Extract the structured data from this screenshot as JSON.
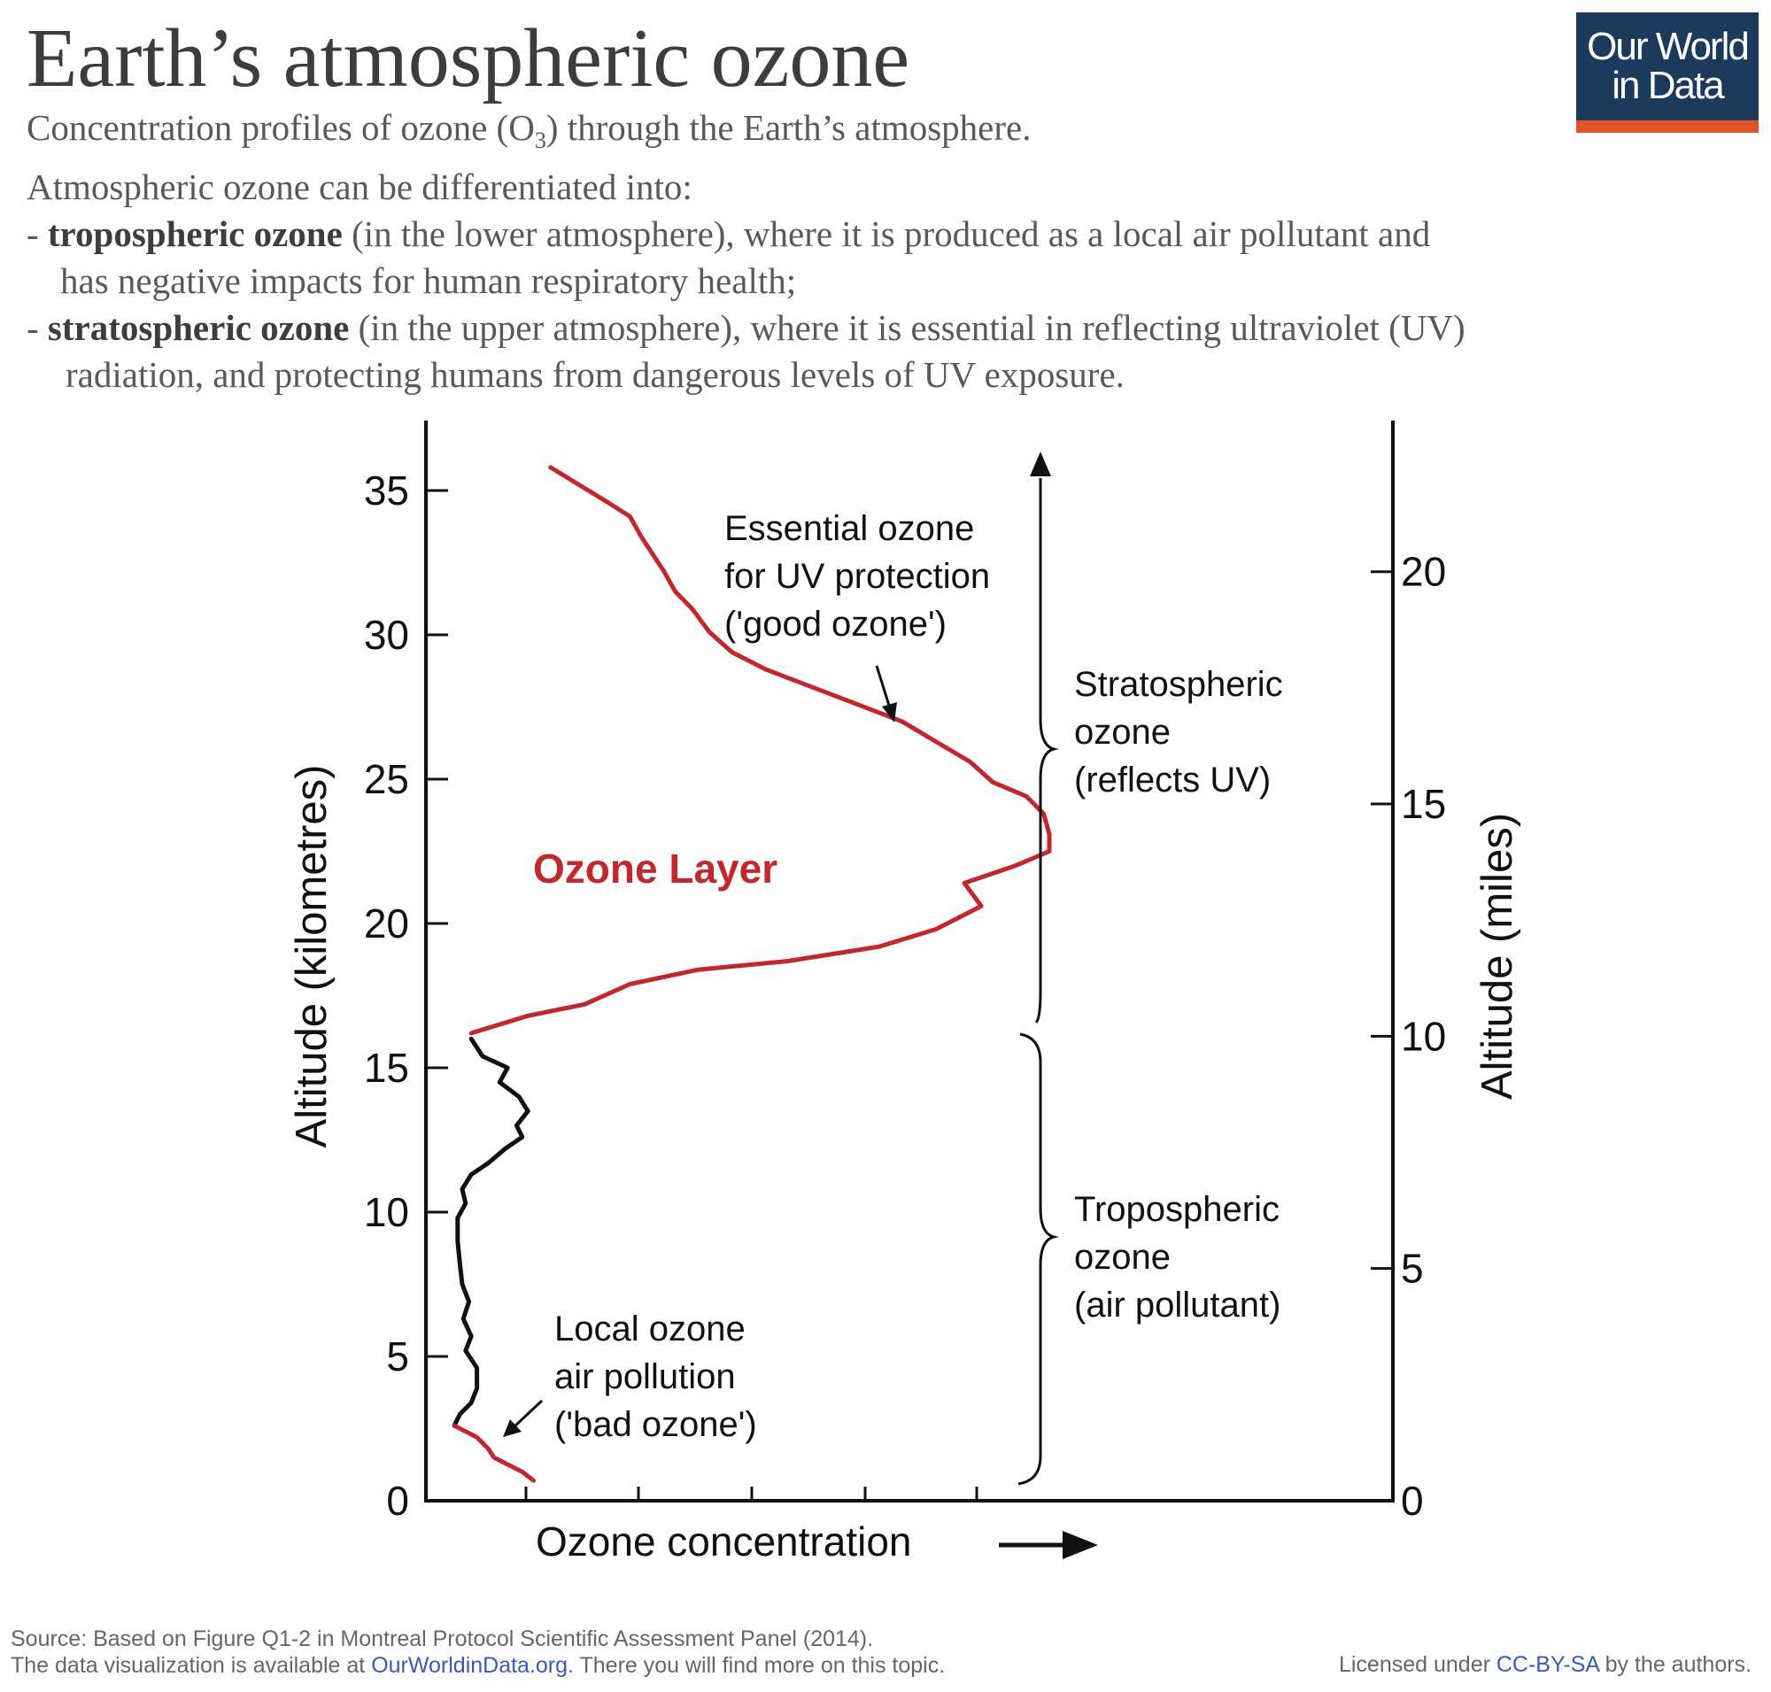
{
  "header": {
    "title": "Earth’s atmospheric ozone",
    "subtitle_line1_pre": "Concentration profiles of ozone (O",
    "subtitle_line1_sub": "3",
    "subtitle_line1_post": ") through the Earth’s atmosphere.",
    "subtitle_line2": "Atmospheric ozone can be differentiated into:",
    "bullet1_dash": "- ",
    "bullet1_bold": "tropospheric ozone",
    "bullet1_rest": " (in the lower atmosphere), where it is produced as a local air pollutant and",
    "bullet1_cont": "has negative impacts for human respiratory health;",
    "bullet2_dash": "- ",
    "bullet2_bold": "stratospheric ozone",
    "bullet2_rest": " (in the upper atmosphere), where it is essential in reflecting ultraviolet (UV)",
    "bullet2_cont": "radiation, and protecting humans from dangerous levels of UV exposure."
  },
  "logo": {
    "line1": "Our World",
    "line2": "in Data"
  },
  "footer": {
    "source_line": "Source: Based on Figure Q1-2 in Montreal Protocol Scientific Assessment Panel (2014).",
    "availability_pre": "The data visualization is available at ",
    "availability_link": "OurWorldinData.org",
    "availability_post": ". There you will find more on this topic.",
    "license_pre": "Licensed under ",
    "license_link": "CC-BY-SA",
    "license_post": " by the authors."
  },
  "colors": {
    "ozone_red": "#c0282d",
    "profile_black": "#111111",
    "logo_navy": "#1b3a5c",
    "logo_orange": "#e0542c",
    "link_blue": "#3a5bb5"
  },
  "chart_data": {
    "type": "line",
    "xlabel": "Ozone concentration",
    "ylabel": "Altitude (kilometres)",
    "ylabel_right": "Altitude (miles)",
    "ylim": [
      0,
      37
    ],
    "yticks": [
      0,
      5,
      10,
      15,
      20,
      25,
      30,
      35
    ],
    "yticks_right": [
      0,
      5,
      10,
      15,
      20
    ],
    "series": [
      {
        "name": "Ozone Layer",
        "color": "#c0282d",
        "points": [
          [
            1.1,
            35.8
          ],
          [
            1.35,
            35.2
          ],
          [
            1.6,
            34.6
          ],
          [
            1.8,
            34.1
          ],
          [
            1.9,
            33.4
          ],
          [
            2.0,
            32.8
          ],
          [
            2.1,
            32.2
          ],
          [
            2.2,
            31.5
          ],
          [
            2.35,
            30.9
          ],
          [
            2.5,
            30.1
          ],
          [
            2.7,
            29.4
          ],
          [
            3.0,
            28.8
          ],
          [
            3.4,
            28.2
          ],
          [
            3.8,
            27.6
          ],
          [
            4.2,
            27.0
          ],
          [
            4.5,
            26.3
          ],
          [
            4.8,
            25.6
          ],
          [
            5.0,
            24.9
          ],
          [
            5.3,
            24.4
          ],
          [
            5.45,
            23.8
          ],
          [
            5.5,
            23.1
          ],
          [
            5.5,
            22.5
          ],
          [
            5.2,
            22.0
          ],
          [
            4.75,
            21.4
          ],
          [
            4.9,
            20.6
          ],
          [
            4.5,
            19.8
          ],
          [
            4.0,
            19.2
          ],
          [
            3.2,
            18.7
          ],
          [
            2.4,
            18.4
          ],
          [
            1.8,
            17.9
          ],
          [
            1.4,
            17.2
          ],
          [
            0.9,
            16.8
          ],
          [
            0.4,
            16.2
          ]
        ]
      },
      {
        "name": "",
        "color": "#111111",
        "points": [
          [
            0.4,
            16.0
          ],
          [
            0.5,
            15.4
          ],
          [
            0.72,
            15.0
          ],
          [
            0.65,
            14.5
          ],
          [
            0.82,
            14.0
          ],
          [
            0.9,
            13.5
          ],
          [
            0.8,
            13.0
          ],
          [
            0.85,
            12.6
          ],
          [
            0.7,
            12.2
          ],
          [
            0.55,
            11.7
          ],
          [
            0.4,
            11.3
          ],
          [
            0.32,
            10.8
          ],
          [
            0.35,
            10.3
          ],
          [
            0.28,
            9.8
          ],
          [
            0.28,
            9.0
          ],
          [
            0.3,
            8.2
          ],
          [
            0.32,
            7.5
          ],
          [
            0.38,
            6.9
          ],
          [
            0.33,
            6.3
          ],
          [
            0.4,
            5.7
          ],
          [
            0.35,
            5.2
          ],
          [
            0.45,
            4.6
          ],
          [
            0.45,
            3.9
          ],
          [
            0.4,
            3.4
          ],
          [
            0.3,
            3.0
          ],
          [
            0.25,
            2.6
          ]
        ]
      },
      {
        "name": "",
        "color": "#c0282d",
        "points": [
          [
            0.25,
            2.6
          ],
          [
            0.45,
            2.2
          ],
          [
            0.55,
            1.8
          ],
          [
            0.6,
            1.5
          ],
          [
            0.7,
            1.3
          ],
          [
            0.85,
            1.0
          ],
          [
            0.95,
            0.7
          ]
        ]
      }
    ],
    "annotations": {
      "layer_label": "Ozone Layer",
      "good_line1": "Essential ozone",
      "good_line2": "for UV protection",
      "good_line3": "('good ozone')",
      "bad_line1": "Local ozone",
      "bad_line2": "air pollution",
      "bad_line3": "('bad ozone')",
      "strat_line1": "Stratospheric",
      "strat_line2": "ozone",
      "strat_line3": "(reflects UV)",
      "trop_line1": "Tropospheric",
      "trop_line2": "ozone",
      "trop_line3": "(air pollutant)"
    },
    "legend": "none",
    "grid": false
  }
}
